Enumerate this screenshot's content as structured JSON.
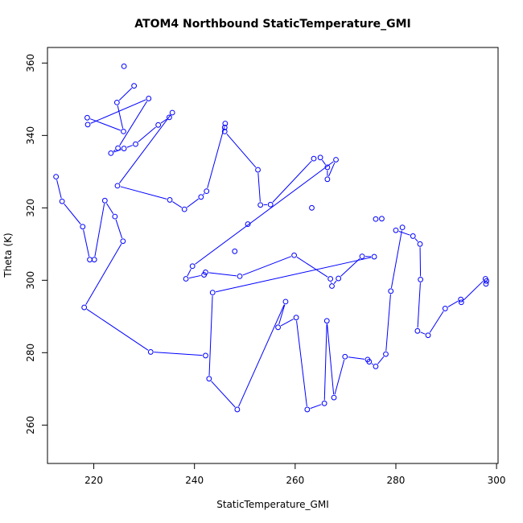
{
  "chart_data": {
    "type": "line",
    "title": "ATOM4 Northbound StaticTemperature_GMI",
    "xlabel": "StaticTemperature_GMI",
    "ylabel": "Theta (K)",
    "xlim": [
      210.8,
      300.3
    ],
    "ylim": [
      249.4,
      364.3
    ],
    "xticks": [
      220,
      240,
      260,
      280,
      300
    ],
    "yticks": [
      260,
      280,
      300,
      320,
      340,
      360
    ],
    "color": "#0000ff",
    "markers": "open-circle",
    "grid": false,
    "legend": "none",
    "series": [
      {
        "points": [
          [
            212.5,
            328.6
          ],
          [
            213.7,
            321.8
          ],
          [
            217.8,
            314.8
          ],
          [
            219.2,
            305.7
          ],
          [
            220.1,
            305.7
          ],
          [
            222.2,
            322.0
          ],
          [
            224.2,
            317.6
          ],
          [
            225.8,
            310.8
          ],
          [
            218.1,
            292.5
          ],
          [
            231.3,
            280.2
          ],
          [
            242.2,
            279.2
          ],
          [
            226.0,
            359.1
          ],
          [
            228.0,
            353.7
          ],
          [
            224.6,
            349.1
          ],
          [
            225.9,
            341.1
          ],
          [
            218.7,
            344.9
          ],
          [
            218.8,
            343.0
          ],
          [
            230.9,
            350.2
          ],
          [
            224.8,
            336.5
          ],
          [
            223.4,
            335.1
          ],
          [
            226.0,
            336.4
          ],
          [
            228.3,
            337.6
          ],
          [
            232.8,
            342.9
          ],
          [
            235.0,
            345.0
          ],
          [
            235.6,
            346.3
          ],
          [
            224.7,
            326.1
          ],
          [
            235.1,
            322.2
          ],
          [
            238.0,
            319.6
          ],
          [
            241.3,
            323.0
          ],
          [
            242.4,
            324.6
          ],
          [
            246.1,
            343.3
          ],
          [
            246.0,
            342.2
          ],
          [
            246.0,
            341.1
          ],
          [
            252.6,
            330.5
          ],
          [
            253.1,
            320.8
          ],
          [
            255.1,
            320.9
          ],
          [
            263.7,
            333.6
          ],
          [
            265.0,
            333.9
          ],
          [
            266.4,
            331.2
          ],
          [
            266.4,
            327.9
          ],
          [
            268.1,
            333.3
          ],
          [
            239.6,
            303.9
          ],
          [
            238.3,
            300.4
          ],
          [
            241.9,
            301.5
          ],
          [
            242.2,
            302.2
          ],
          [
            249.0,
            301.1
          ],
          [
            259.8,
            306.9
          ],
          [
            267.0,
            300.4
          ],
          [
            267.3,
            298.4
          ],
          [
            268.6,
            300.5
          ],
          [
            273.3,
            306.6
          ],
          [
            275.7,
            306.5
          ],
          [
            243.6,
            296.6
          ],
          [
            242.9,
            272.8
          ],
          [
            248.5,
            264.3
          ],
          [
            258.1,
            294.1
          ],
          [
            256.6,
            287.0
          ],
          [
            260.2,
            289.7
          ],
          [
            262.4,
            264.3
          ],
          [
            265.8,
            266.0
          ],
          [
            266.3,
            288.8
          ],
          [
            267.7,
            267.6
          ],
          [
            269.9,
            278.9
          ],
          [
            274.4,
            278.1
          ],
          [
            274.7,
            277.5
          ],
          [
            276.0,
            276.2
          ],
          [
            278.0,
            279.6
          ],
          [
            279.0,
            297.0
          ],
          [
            281.3,
            314.6
          ],
          [
            280.0,
            313.8
          ],
          [
            283.4,
            312.2
          ],
          [
            284.8,
            310.0
          ],
          [
            284.9,
            300.2
          ],
          [
            284.3,
            286.0
          ],
          [
            286.4,
            284.8
          ],
          [
            289.8,
            292.2
          ],
          [
            292.9,
            294.7
          ],
          [
            293.0,
            293.9
          ],
          [
            297.8,
            300.4
          ],
          [
            297.9,
            299.0
          ],
          [
            298.0,
            299.8
          ],
          [
            276.0,
            316.9
          ],
          [
            277.2,
            317.0
          ],
          [
            263.3,
            320.0
          ],
          [
            250.6,
            315.5
          ],
          [
            248.0,
            308.0
          ]
        ],
        "path_order": [
          [
            12,
            13,
            14,
            15,
            16,
            17,
            18,
            19,
            20,
            21,
            22,
            23,
            24,
            25,
            26,
            27,
            28,
            29,
            30,
            31,
            32,
            33,
            34,
            35,
            36,
            37,
            38,
            39,
            40,
            41,
            42,
            43,
            44,
            45,
            46,
            47,
            48,
            49,
            50,
            51,
            52,
            53,
            54,
            55,
            56,
            57,
            58,
            59,
            60,
            61,
            62,
            63,
            64,
            65,
            66,
            67,
            68,
            69,
            70,
            71,
            72,
            73,
            74,
            75,
            76,
            77,
            78,
            79,
            80
          ],
          [
            0,
            1,
            2,
            3,
            4,
            5,
            6,
            7,
            8,
            9,
            10
          ]
        ]
      }
    ]
  }
}
